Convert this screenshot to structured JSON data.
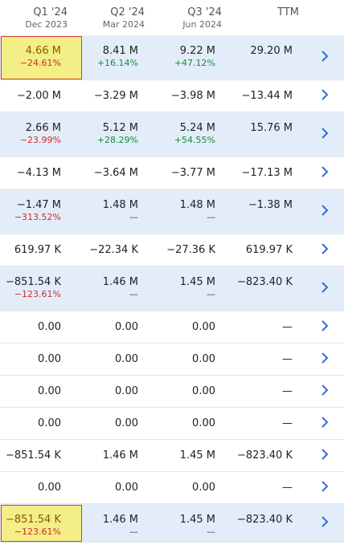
{
  "header": [
    {
      "q": "Q1 '24",
      "d": "Dec 2023"
    },
    {
      "q": "Q2 '24",
      "d": "Mar 2024"
    },
    {
      "q": "Q3 '24",
      "d": "Jun 2024"
    },
    {
      "q": "TTM",
      "d": ""
    }
  ],
  "colors": {
    "shade": "#e3edf9",
    "highlight": "#f4ee87",
    "positive": "#1a8a3a",
    "negative": "#d22a2a",
    "chevron": "#2f6fd6"
  },
  "rows": [
    {
      "shade": true,
      "cells": [
        {
          "v": "4.66 M",
          "p": "−24.61%",
          "t": "neg",
          "hl": true
        },
        {
          "v": "8.41 M",
          "p": "+16.14%",
          "t": "pos"
        },
        {
          "v": "9.22 M",
          "p": "+47.12%",
          "t": "pos"
        },
        {
          "v": "29.20 M",
          "p": ""
        }
      ]
    },
    {
      "shade": false,
      "cells": [
        {
          "v": "−2.00 M"
        },
        {
          "v": "−3.29 M"
        },
        {
          "v": "−3.98 M"
        },
        {
          "v": "−13.44 M"
        }
      ]
    },
    {
      "shade": true,
      "cells": [
        {
          "v": "2.66 M",
          "p": "−23.99%",
          "t": "neg"
        },
        {
          "v": "5.12 M",
          "p": "+28.29%",
          "t": "pos"
        },
        {
          "v": "5.24 M",
          "p": "+54.55%",
          "t": "pos"
        },
        {
          "v": "15.76 M",
          "p": ""
        }
      ]
    },
    {
      "shade": false,
      "cells": [
        {
          "v": "−4.13 M"
        },
        {
          "v": "−3.64 M"
        },
        {
          "v": "−3.77 M"
        },
        {
          "v": "−17.13 M"
        }
      ]
    },
    {
      "shade": true,
      "cells": [
        {
          "v": "−1.47 M",
          "p": "−313.52%",
          "t": "neg"
        },
        {
          "v": "1.48 M",
          "p": "—",
          "t": "dash"
        },
        {
          "v": "1.48 M",
          "p": "—",
          "t": "dash"
        },
        {
          "v": "−1.38 M",
          "p": ""
        }
      ]
    },
    {
      "shade": false,
      "cells": [
        {
          "v": "619.97 K"
        },
        {
          "v": "−22.34 K"
        },
        {
          "v": "−27.36 K"
        },
        {
          "v": "619.97 K"
        }
      ]
    },
    {
      "shade": true,
      "cells": [
        {
          "v": "−851.54 K",
          "p": "−123.61%",
          "t": "neg"
        },
        {
          "v": "1.46 M",
          "p": "—",
          "t": "dash"
        },
        {
          "v": "1.45 M",
          "p": "—",
          "t": "dash"
        },
        {
          "v": "−823.40 K",
          "p": ""
        }
      ]
    },
    {
      "shade": false,
      "cells": [
        {
          "v": "0.00"
        },
        {
          "v": "0.00"
        },
        {
          "v": "0.00"
        },
        {
          "v": "—"
        }
      ]
    },
    {
      "shade": false,
      "cells": [
        {
          "v": "0.00"
        },
        {
          "v": "0.00"
        },
        {
          "v": "0.00"
        },
        {
          "v": "—"
        }
      ]
    },
    {
      "shade": false,
      "cells": [
        {
          "v": "0.00"
        },
        {
          "v": "0.00"
        },
        {
          "v": "0.00"
        },
        {
          "v": "—"
        }
      ]
    },
    {
      "shade": false,
      "cells": [
        {
          "v": "0.00"
        },
        {
          "v": "0.00"
        },
        {
          "v": "0.00"
        },
        {
          "v": "—"
        }
      ]
    },
    {
      "shade": false,
      "cells": [
        {
          "v": "−851.54 K"
        },
        {
          "v": "1.46 M"
        },
        {
          "v": "1.45 M"
        },
        {
          "v": "−823.40 K"
        }
      ]
    },
    {
      "shade": false,
      "cells": [
        {
          "v": "0.00"
        },
        {
          "v": "0.00"
        },
        {
          "v": "0.00"
        },
        {
          "v": "—"
        }
      ]
    },
    {
      "shade": true,
      "cells": [
        {
          "v": "−851.54 K",
          "p": "−123.61%",
          "t": "neg",
          "hl": true
        },
        {
          "v": "1.46 M",
          "p": "—",
          "t": "dash"
        },
        {
          "v": "1.45 M",
          "p": "—",
          "t": "dash"
        },
        {
          "v": "−823.40 K",
          "p": ""
        }
      ]
    }
  ]
}
